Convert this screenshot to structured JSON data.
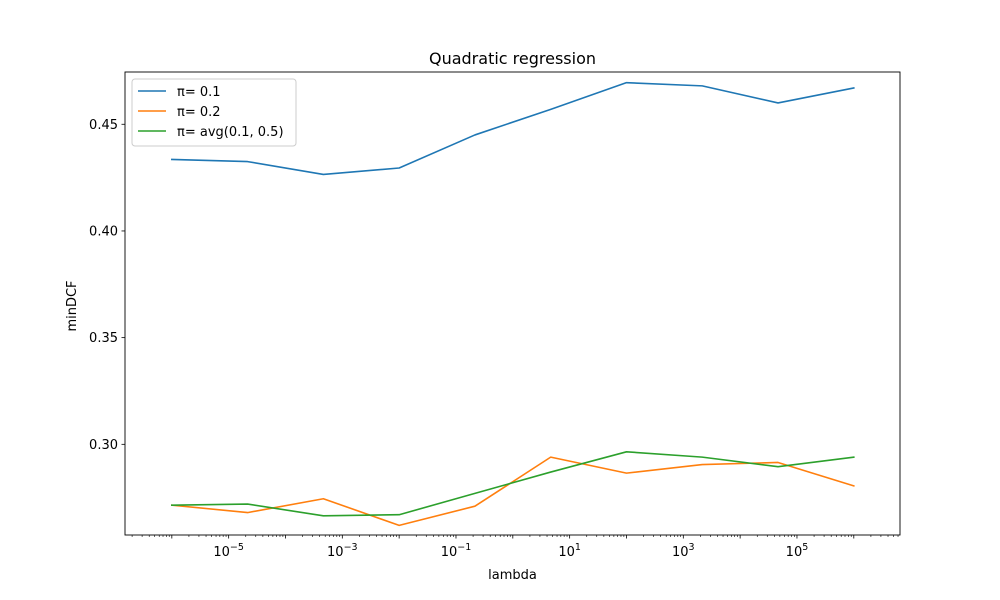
{
  "chart_data": {
    "type": "line",
    "title": "Quadratic regression",
    "xlabel": "lambda",
    "ylabel": "minDCF",
    "x_scale": "log",
    "x": [
      1e-06,
      2.1544e-05,
      0.00046416,
      0.01,
      0.21544,
      4.6416,
      100,
      2154.4,
      46416,
      1000000
    ],
    "xlim": [
      1.5e-07,
      6500000.0
    ],
    "ylim": [
      0.2575,
      0.4745
    ],
    "x_ticks": [
      "10^-5",
      "10^-3",
      "10^-1",
      "10^1",
      "10^3",
      "10^5"
    ],
    "x_tick_exponents": [
      -5,
      -3,
      -1,
      1,
      3,
      5
    ],
    "y_ticks": [
      "0.30",
      "0.35",
      "0.40",
      "0.45"
    ],
    "y_tick_values": [
      0.3,
      0.35,
      0.4,
      0.45
    ],
    "grid": false,
    "legend_position": "top-left",
    "series": [
      {
        "name": "π= 0.1",
        "color": "#1f77b4",
        "values": [
          0.4335,
          0.4325,
          0.4265,
          0.4295,
          0.445,
          0.457,
          0.4695,
          0.468,
          0.46,
          0.467
        ]
      },
      {
        "name": "π= 0.2",
        "color": "#ff7f0e",
        "values": [
          0.2715,
          0.268,
          0.2745,
          0.262,
          0.271,
          0.294,
          0.2865,
          0.2905,
          0.2915,
          0.2805
        ]
      },
      {
        "name": "π= avg(0.1, 0.5)",
        "color": "#2ca02c",
        "values": [
          0.2715,
          0.272,
          0.2665,
          0.267,
          0.277,
          0.287,
          0.2965,
          0.294,
          0.2895,
          0.294
        ]
      }
    ]
  }
}
